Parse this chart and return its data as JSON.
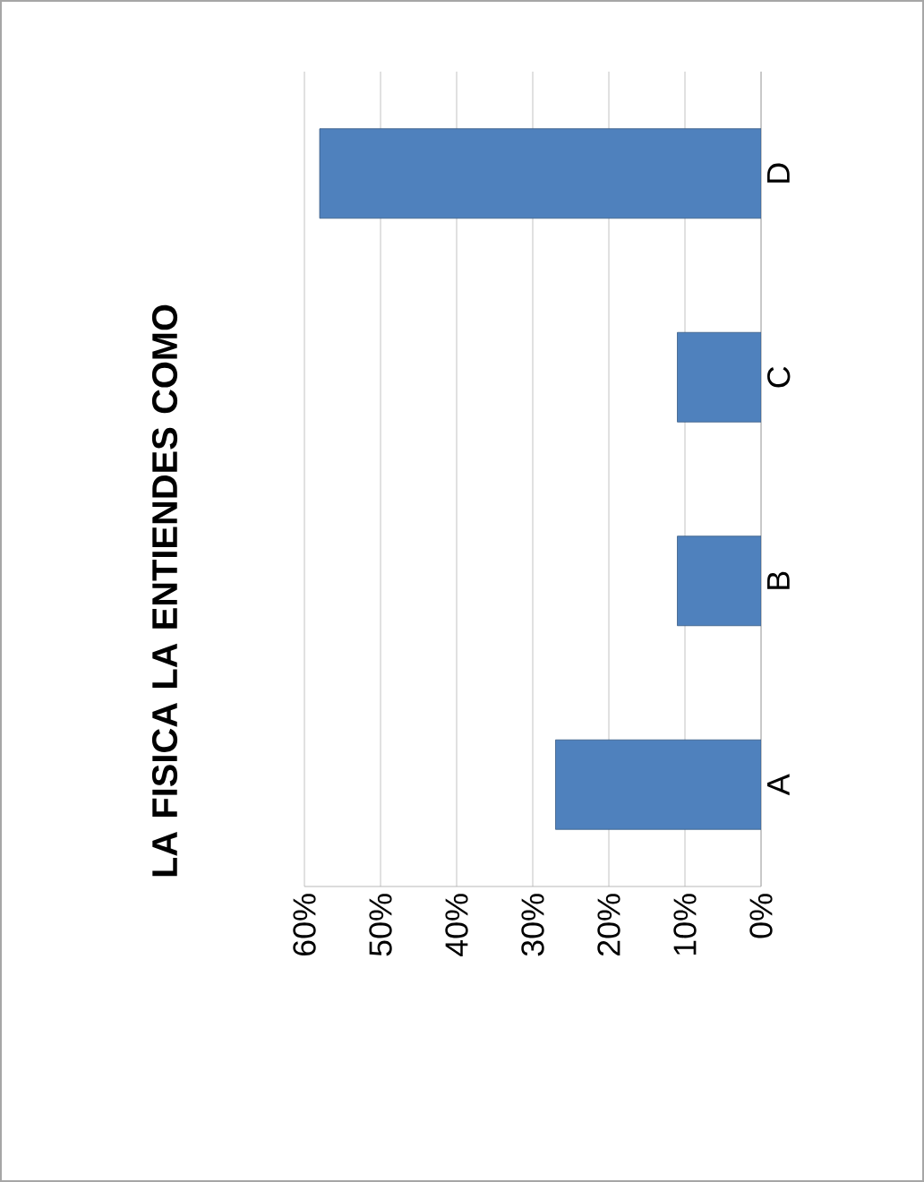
{
  "chart_data": {
    "type": "bar",
    "orientation": "horizontal",
    "title": "LA FISICA LA ENTIENDES COMO",
    "categories": [
      "D",
      "C",
      "B",
      "A"
    ],
    "values": [
      58,
      11,
      11,
      27
    ],
    "color": "#4f81bd",
    "xlim": [
      60,
      0
    ],
    "xticks": [
      {
        "value": 0,
        "label": "0%"
      },
      {
        "value": 10,
        "label": "10%"
      },
      {
        "value": 20,
        "label": "20%"
      },
      {
        "value": 30,
        "label": "30%"
      },
      {
        "value": 40,
        "label": "40%"
      },
      {
        "value": 50,
        "label": "50%"
      },
      {
        "value": 60,
        "label": "60%"
      }
    ],
    "grid": "x"
  }
}
